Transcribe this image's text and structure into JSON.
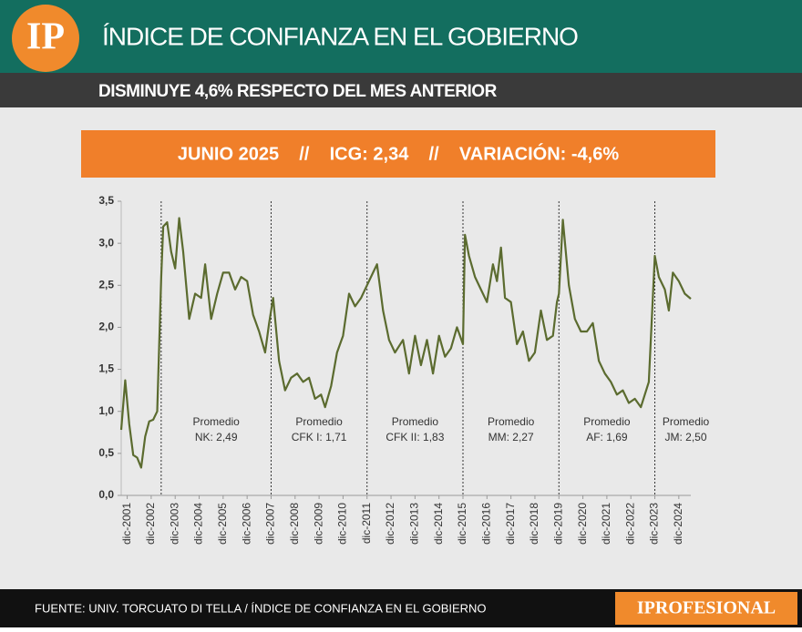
{
  "header": {
    "logo": "IP",
    "title": "ÍNDICE DE CONFIANZA EN EL GOBIERNO",
    "subtitle": "DISMINUYE 4,6% RESPECTO DEL MES ANTERIOR",
    "banner": "JUNIO 2025    //    ICG: 2,34    //    VARIACIÓN: -4,6%"
  },
  "chart_data": {
    "type": "line",
    "x": [
      "2001-09",
      "2001-11",
      "2002-01",
      "2002-03",
      "2002-05",
      "2002-07",
      "2002-09",
      "2002-11",
      "2003-01",
      "2003-03",
      "2003-05",
      "2003-06",
      "2003-08",
      "2003-10",
      "2003-12",
      "2004-02",
      "2004-04",
      "2004-07",
      "2004-10",
      "2005-01",
      "2005-03",
      "2005-06",
      "2005-09",
      "2005-12",
      "2006-03",
      "2006-06",
      "2006-09",
      "2006-12",
      "2007-03",
      "2007-06",
      "2007-09",
      "2007-11",
      "2008-01",
      "2008-04",
      "2008-07",
      "2008-10",
      "2009-01",
      "2009-04",
      "2009-07",
      "2009-10",
      "2010-01",
      "2010-03",
      "2010-06",
      "2010-09",
      "2010-12",
      "2011-03",
      "2011-06",
      "2011-09",
      "2011-12",
      "2012-03",
      "2012-05",
      "2012-08",
      "2012-11",
      "2013-02",
      "2013-06",
      "2013-09",
      "2013-12",
      "2014-03",
      "2014-06",
      "2014-09",
      "2014-12",
      "2015-03",
      "2015-06",
      "2015-09",
      "2015-12",
      "2016-01",
      "2016-03",
      "2016-06",
      "2016-09",
      "2016-12",
      "2017-03",
      "2017-05",
      "2017-07",
      "2017-09",
      "2017-12",
      "2018-03",
      "2018-06",
      "2018-09",
      "2018-12",
      "2019-03",
      "2019-06",
      "2019-09",
      "2019-11",
      "2019-12",
      "2020-02",
      "2020-05",
      "2020-08",
      "2020-11",
      "2021-02",
      "2021-05",
      "2021-08",
      "2021-11",
      "2022-02",
      "2022-05",
      "2022-08",
      "2022-11",
      "2023-02",
      "2023-05",
      "2023-09",
      "2023-12",
      "2024-02",
      "2024-05",
      "2024-07",
      "2024-09",
      "2024-12",
      "2025-03",
      "2025-06"
    ],
    "series": [
      {
        "name": "ICG",
        "color": "#5b6b2f",
        "values": [
          0.78,
          1.37,
          0.85,
          0.48,
          0.45,
          0.33,
          0.7,
          0.88,
          0.9,
          1.0,
          2.6,
          3.2,
          3.25,
          2.9,
          2.7,
          3.3,
          2.9,
          2.1,
          2.4,
          2.35,
          2.75,
          2.1,
          2.4,
          2.65,
          2.65,
          2.45,
          2.6,
          2.55,
          2.15,
          1.95,
          1.7,
          2.05,
          2.35,
          1.6,
          1.25,
          1.4,
          1.45,
          1.35,
          1.4,
          1.15,
          1.2,
          1.05,
          1.3,
          1.7,
          1.9,
          2.4,
          2.25,
          2.35,
          2.5,
          2.65,
          2.75,
          2.2,
          1.85,
          1.7,
          1.85,
          1.45,
          1.9,
          1.55,
          1.85,
          1.45,
          1.9,
          1.65,
          1.75,
          2.0,
          1.8,
          3.1,
          2.85,
          2.6,
          2.45,
          2.3,
          2.75,
          2.55,
          2.95,
          2.35,
          2.3,
          1.8,
          1.95,
          1.6,
          1.7,
          2.2,
          1.85,
          1.9,
          2.3,
          2.4,
          3.28,
          2.5,
          2.1,
          1.95,
          1.95,
          2.05,
          1.6,
          1.45,
          1.35,
          1.2,
          1.25,
          1.1,
          1.15,
          1.05,
          1.35,
          2.85,
          2.6,
          2.45,
          2.2,
          2.65,
          2.55,
          2.4,
          2.34
        ]
      }
    ],
    "xlim": [
      "2001-09",
      "2025-06"
    ],
    "xticks": [
      {
        "value": "2001-12",
        "label": "dic-2001"
      },
      {
        "value": "2002-12",
        "label": "dic-2002"
      },
      {
        "value": "2003-12",
        "label": "dic-2003"
      },
      {
        "value": "2004-12",
        "label": "dic-2004"
      },
      {
        "value": "2005-12",
        "label": "dic-2005"
      },
      {
        "value": "2006-12",
        "label": "dic-2006"
      },
      {
        "value": "2007-12",
        "label": "dic-2007"
      },
      {
        "value": "2008-12",
        "label": "dic-2008"
      },
      {
        "value": "2009-12",
        "label": "dic-2009"
      },
      {
        "value": "2010-12",
        "label": "dic-2010"
      },
      {
        "value": "2011-12",
        "label": "dic-2011"
      },
      {
        "value": "2012-12",
        "label": "dic-2012"
      },
      {
        "value": "2013-12",
        "label": "dic-2013"
      },
      {
        "value": "2014-12",
        "label": "dic-2014"
      },
      {
        "value": "2015-12",
        "label": "dic-2015"
      },
      {
        "value": "2016-12",
        "label": "dic-2016"
      },
      {
        "value": "2017-12",
        "label": "dic-2017"
      },
      {
        "value": "2018-12",
        "label": "dic-2018"
      },
      {
        "value": "2019-12",
        "label": "dic-2019"
      },
      {
        "value": "2020-12",
        "label": "dic-2020"
      },
      {
        "value": "2021-12",
        "label": "dic-2021"
      },
      {
        "value": "2022-12",
        "label": "dic-2022"
      },
      {
        "value": "2023-12",
        "label": "dic-2023"
      },
      {
        "value": "2024-12",
        "label": "dic-2024"
      }
    ],
    "ylim": [
      0,
      3.5
    ],
    "yticks": [
      {
        "value": 0,
        "label": "0,0"
      },
      {
        "value": 0.5,
        "label": "0,5"
      },
      {
        "value": 1,
        "label": "1,0"
      },
      {
        "value": 1.5,
        "label": "1,5"
      },
      {
        "value": 2,
        "label": "2,0"
      },
      {
        "value": 2.5,
        "label": "2,5"
      },
      {
        "value": 3,
        "label": "3,0"
      },
      {
        "value": 3.5,
        "label": "3,5"
      }
    ],
    "periods": [
      {
        "start": "2003-05",
        "title": "Promedio",
        "label": "NK: 2,49"
      },
      {
        "start": "2007-12",
        "title": "Promedio",
        "label": "CFK I: 1,71"
      },
      {
        "start": "2011-12",
        "title": "Promedio",
        "label": "CFK II: 1,83"
      },
      {
        "start": "2015-12",
        "title": "Promedio",
        "label": "MM: 2,27"
      },
      {
        "start": "2019-12",
        "title": "Promedio",
        "label": "AF: 1,69"
      },
      {
        "start": "2023-12",
        "title": "Promedio",
        "label": "JM: 2,50"
      }
    ]
  },
  "footer": {
    "source": "FUENTE: UNIV. TORCUATO DI TELLA / ÍNDICE DE CONFIANZA EN EL GOBIERNO",
    "brand": "IPROFESIONAL"
  }
}
